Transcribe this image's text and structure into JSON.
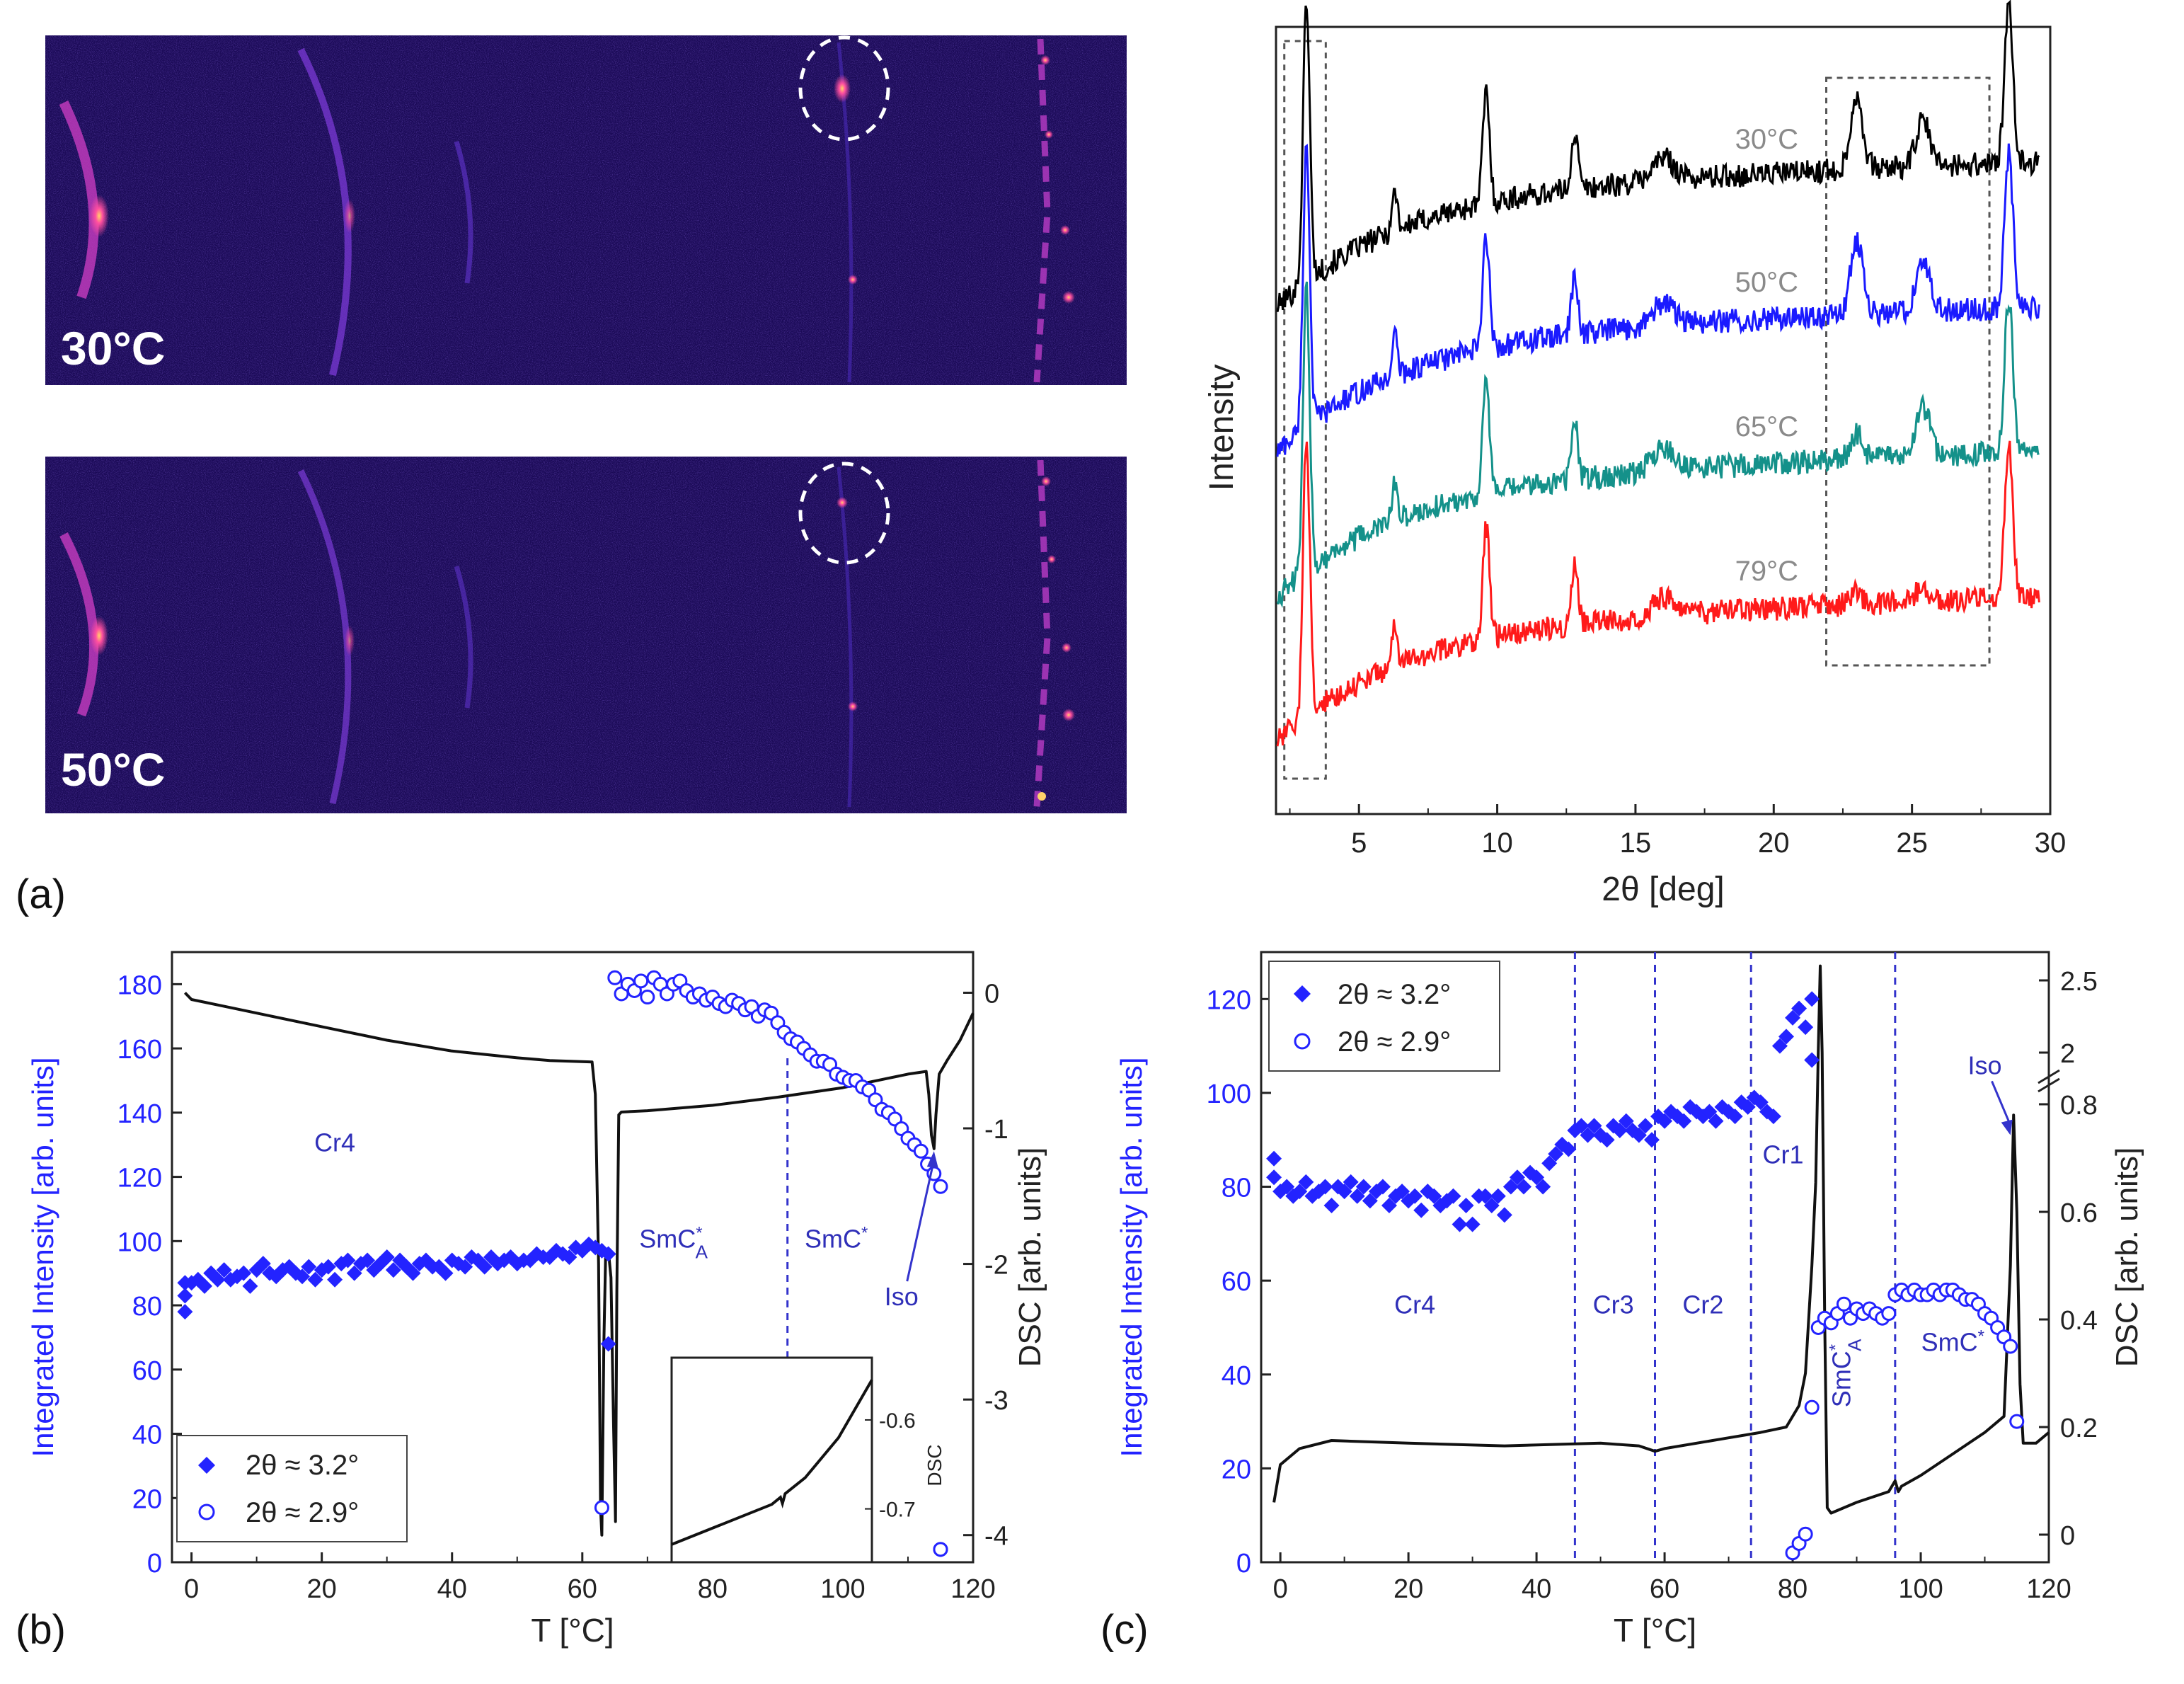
{
  "colors": {
    "series_30": "#000000",
    "series_50": "#1a1aff",
    "series_65": "#14918a",
    "series_79": "#ff1a1a",
    "blue_markers": "#2323ff",
    "phase_text": "#2f2fb8",
    "detector_bg": "#1b0a57",
    "temp_label": "#8a8a8a"
  },
  "panel_labels": {
    "a": "(a)",
    "b": "(b)",
    "c": "(c)"
  },
  "detector_images": [
    {
      "label": "30°C"
    },
    {
      "label": "50°C"
    }
  ],
  "chart_data": [
    {
      "id": "xrd",
      "type": "line",
      "xlabel": "2θ [deg]",
      "ylabel": "Intensity",
      "xlim": [
        2,
        30
      ],
      "xticks": [
        5,
        10,
        15,
        20,
        25,
        30
      ],
      "peaks": [
        {
          "x": 3.1,
          "h": 1.0,
          "w": 0.12
        },
        {
          "x": 6.3,
          "h": 0.14,
          "w": 0.1
        },
        {
          "x": 9.6,
          "h": 0.4,
          "w": 0.12
        },
        {
          "x": 12.8,
          "h": 0.2,
          "w": 0.12
        },
        {
          "x": 16.0,
          "h": 0.08,
          "w": 0.4
        },
        {
          "x": 23.0,
          "h": 0.26,
          "w": 0.22
        },
        {
          "x": 25.4,
          "h": 0.16,
          "w": 0.25
        },
        {
          "x": 28.5,
          "h": 0.55,
          "w": 0.15
        }
      ],
      "series": [
        {
          "name": "30°C",
          "offset": 3.0,
          "weights": [
            1.0,
            1.0,
            1.0,
            1.0,
            1.0,
            1.0,
            1.0,
            1.0
          ]
        },
        {
          "name": "50°C",
          "offset": 2.0,
          "weights": [
            1.0,
            1.0,
            1.0,
            1.0,
            1.0,
            1.0,
            1.1,
            1.0
          ]
        },
        {
          "name": "65°C",
          "offset": 1.0,
          "weights": [
            1.0,
            1.0,
            1.0,
            1.0,
            1.0,
            0.35,
            1.1,
            1.0
          ]
        },
        {
          "name": "79°C",
          "offset": 0.0,
          "weights": [
            1.0,
            1.0,
            1.0,
            1.0,
            0.8,
            0.15,
            0.3,
            1.0
          ]
        }
      ]
    },
    {
      "id": "b",
      "type": "scatter",
      "xlabel": "T [°C]",
      "ylabel": "Integrated Intensity [arb. units]",
      "y2label": "DSC [arb. units]",
      "xlim": [
        -3,
        120
      ],
      "ylim": [
        0,
        190
      ],
      "y2lim": [
        -4.2,
        0.3
      ],
      "xticks": [
        0,
        20,
        40,
        60,
        80,
        100,
        120
      ],
      "yticks": [
        0,
        20,
        40,
        60,
        80,
        100,
        120,
        140,
        160,
        180
      ],
      "y2ticks": [
        0,
        -1,
        -2,
        -3,
        -4
      ],
      "legend": [
        {
          "marker": "diamond",
          "label": "2θ ≈ 3.2°"
        },
        {
          "marker": "circle",
          "label": "2θ ≈ 2.9°"
        }
      ],
      "phases": [
        {
          "label": "Cr4",
          "x": 22,
          "y": 128
        },
        {
          "label": "SmC*A",
          "x": 74,
          "y": 98
        },
        {
          "label": "SmC*",
          "x": 99,
          "y": 98
        }
      ],
      "annotation": {
        "label": "Iso",
        "x": 109,
        "y": 80,
        "arrow_to": [
          114,
          128
        ]
      },
      "vlines": [
        91.5
      ],
      "diamonds_x": [
        -1,
        -1,
        -1,
        0,
        1,
        2,
        3,
        4,
        5,
        6,
        7,
        8,
        9,
        10,
        11,
        12,
        13,
        14,
        15,
        16,
        17,
        18,
        19,
        20,
        21,
        22,
        23,
        24,
        25,
        26,
        27,
        28,
        29,
        30,
        31,
        32,
        33,
        34,
        35,
        36,
        37,
        38,
        39,
        40,
        41,
        42,
        43,
        44,
        45,
        46,
        47,
        48,
        49,
        50,
        51,
        52,
        53,
        54,
        55,
        56,
        57,
        58,
        59,
        60,
        61,
        62,
        63,
        64
      ],
      "diamonds_y": [
        78,
        83,
        87,
        87,
        88,
        86,
        90,
        88,
        91,
        88,
        89,
        90,
        86,
        91,
        93,
        90,
        89,
        91,
        92,
        90,
        89,
        92,
        88,
        91,
        92,
        88,
        93,
        94,
        90,
        93,
        94,
        91,
        93,
        95,
        91,
        94,
        92,
        90,
        93,
        94,
        92,
        92,
        90,
        94,
        93,
        92,
        95,
        94,
        92,
        95,
        93,
        94,
        95,
        93,
        94,
        94,
        96,
        95,
        95,
        97,
        96,
        95,
        98,
        97,
        99,
        98,
        97,
        96
      ],
      "diamonds_extra": [
        [
          64,
          68
        ]
      ],
      "circles_x": [
        63,
        65,
        66,
        67,
        68,
        69,
        70,
        71,
        72,
        73,
        74,
        75,
        76,
        77,
        78,
        79,
        80,
        81,
        82,
        83,
        84,
        85,
        86,
        87,
        88,
        89,
        90,
        91,
        92,
        93,
        94,
        95,
        96,
        97,
        98,
        99,
        100,
        101,
        102,
        103,
        104,
        105,
        106,
        107,
        108,
        109,
        110,
        111,
        112,
        113,
        114,
        115
      ],
      "circles_y": [
        17,
        182,
        177,
        180,
        178,
        181,
        176,
        182,
        180,
        177,
        180,
        181,
        178,
        176,
        177,
        175,
        176,
        174,
        173,
        175,
        174,
        172,
        173,
        170,
        172,
        171,
        168,
        165,
        163,
        162,
        160,
        158,
        156,
        156,
        155,
        152,
        151,
        150,
        150,
        148,
        147,
        144,
        141,
        140,
        138,
        135,
        132,
        130,
        128,
        124,
        121,
        117
      ],
      "circles_extra": [
        [
          115,
          4
        ]
      ],
      "dsc": [
        [
          -1,
          0.0
        ],
        [
          0,
          -0.05
        ],
        [
          5,
          -0.1
        ],
        [
          10,
          -0.15
        ],
        [
          20,
          -0.25
        ],
        [
          30,
          -0.35
        ],
        [
          40,
          -0.43
        ],
        [
          50,
          -0.48
        ],
        [
          55,
          -0.5
        ],
        [
          61.5,
          -0.51
        ],
        [
          62,
          -0.75
        ],
        [
          62.5,
          -2.0
        ],
        [
          62.8,
          -3.8
        ],
        [
          63.0,
          -4.0
        ],
        [
          63.3,
          -2.6
        ],
        [
          63.6,
          -1.9
        ],
        [
          64,
          -1.9
        ],
        [
          64.4,
          -2.1
        ],
        [
          64.8,
          -3.2
        ],
        [
          65.1,
          -3.9
        ],
        [
          65.3,
          -2.2
        ],
        [
          65.6,
          -0.9
        ],
        [
          66,
          -0.88
        ],
        [
          70,
          -0.87
        ],
        [
          80,
          -0.83
        ],
        [
          90,
          -0.77
        ],
        [
          100,
          -0.7
        ],
        [
          110,
          -0.6
        ],
        [
          112.8,
          -0.58
        ],
        [
          113.2,
          -0.75
        ],
        [
          113.6,
          -1.05
        ],
        [
          114,
          -1.15
        ],
        [
          114.3,
          -0.9
        ],
        [
          114.8,
          -0.6
        ],
        [
          116,
          -0.5
        ],
        [
          118,
          -0.35
        ],
        [
          120,
          -0.15
        ]
      ],
      "inset": {
        "ylabel": "DSC",
        "yticks": [
          -0.6,
          -0.7
        ],
        "xlim": [
          75,
          105
        ],
        "ylim": [
          -0.76,
          -0.53
        ],
        "curve": [
          [
            75,
            -0.74
          ],
          [
            80,
            -0.725
          ],
          [
            85,
            -0.71
          ],
          [
            90,
            -0.695
          ],
          [
            91.3,
            -0.687
          ],
          [
            91.6,
            -0.694
          ],
          [
            92,
            -0.683
          ],
          [
            95,
            -0.665
          ],
          [
            100,
            -0.62
          ],
          [
            105,
            -0.555
          ]
        ]
      }
    },
    {
      "id": "c",
      "type": "scatter",
      "xlabel": "T [°C]",
      "ylabel": "Integrated Intensity [arb. units]",
      "y2label": "DSC [arb. units]",
      "xlim": [
        -3,
        120
      ],
      "ylim": [
        0,
        130
      ],
      "y2lim": [
        -0.02,
        2.7
      ],
      "xticks": [
        0,
        20,
        40,
        60,
        80,
        100,
        120
      ],
      "yticks": [
        0,
        20,
        40,
        60,
        80,
        100,
        120
      ],
      "y2ticks": [
        {
          "v": 0,
          "label": "0"
        },
        {
          "v": 0.2,
          "label": "0.2"
        },
        {
          "v": 0.4,
          "label": "0.4"
        },
        {
          "v": 0.6,
          "label": "0.6"
        },
        {
          "v": 0.8,
          "label": "0.8"
        },
        {
          "v": 2.0,
          "label": "2"
        },
        {
          "v": 2.5,
          "label": "2.5"
        }
      ],
      "legend": [
        {
          "marker": "diamond",
          "label": "2θ ≈ 3.2°"
        },
        {
          "marker": "circle",
          "label": "2θ ≈ 2.9°"
        }
      ],
      "phases": [
        {
          "label": "Cr4",
          "x": 21,
          "y": 53
        },
        {
          "label": "Cr3",
          "x": 52,
          "y": 53
        },
        {
          "label": "Cr2",
          "x": 66,
          "y": 53
        },
        {
          "label": "Cr1",
          "x": 78.5,
          "y": 85
        },
        {
          "label": "SmC*A",
          "x": 89,
          "y": 33,
          "rotate": true
        },
        {
          "label": "SmC*",
          "x": 105,
          "y": 45
        }
      ],
      "annotation": {
        "label": "Iso",
        "x": 110,
        "y": 104,
        "arrow_to": [
          114,
          91
        ]
      },
      "vlines": [
        46,
        58.5,
        73.5,
        96
      ],
      "diamonds_x": [
        -1,
        -1,
        0,
        1,
        2,
        3,
        4,
        5,
        6,
        7,
        8,
        9,
        10,
        11,
        12,
        13,
        14,
        15,
        16,
        17,
        18,
        19,
        20,
        21,
        22,
        23,
        24,
        25,
        26,
        27,
        28,
        29,
        30,
        31,
        32,
        33,
        34,
        35,
        36,
        37,
        38,
        39,
        40,
        41,
        42,
        43,
        44,
        45,
        46,
        47,
        48,
        49,
        50,
        51,
        52,
        53,
        54,
        55,
        56,
        57,
        58,
        59,
        60,
        61,
        62,
        63,
        64,
        65,
        66,
        67,
        68,
        69,
        70,
        71,
        72,
        73,
        74,
        75,
        76,
        77,
        78,
        79,
        80,
        81,
        82,
        83
      ],
      "diamonds_y": [
        86,
        82,
        79,
        80,
        78,
        79,
        81,
        78,
        79,
        80,
        76,
        80,
        79,
        81,
        78,
        80,
        77,
        79,
        80,
        76,
        78,
        79,
        77,
        78,
        75,
        79,
        78,
        76,
        77,
        78,
        72,
        76,
        72,
        78,
        78,
        76,
        78,
        74,
        80,
        82,
        80,
        83,
        82,
        80,
        85,
        87,
        89,
        88,
        92,
        93,
        91,
        93,
        91,
        90,
        93,
        92,
        94,
        92,
        91,
        93,
        90,
        95,
        94,
        96,
        95,
        94,
        97,
        96,
        95,
        96,
        94,
        97,
        96,
        95,
        98,
        97,
        99,
        98,
        96,
        95,
        110,
        112,
        116,
        118,
        114,
        120
      ],
      "diamonds_extra": [
        [
          83,
          107
        ]
      ],
      "circles_x": [
        80,
        81,
        82,
        83,
        84,
        85,
        86,
        87,
        88,
        89,
        90,
        91,
        92,
        93,
        94,
        95,
        96,
        97,
        98,
        99,
        100,
        101,
        102,
        103,
        104,
        105,
        106,
        107,
        108,
        109,
        110,
        111,
        112,
        113,
        114
      ],
      "circles_y": [
        2,
        4,
        6,
        33,
        50,
        52,
        51,
        53,
        55,
        52,
        54,
        53,
        54,
        53,
        52,
        53,
        57,
        58,
        57,
        58,
        57,
        57,
        58,
        57,
        58,
        58,
        57,
        56,
        56,
        55,
        53,
        52,
        50,
        48,
        46
      ],
      "circles_extra": [
        [
          115,
          30
        ]
      ],
      "dsc": [
        [
          -1,
          0.06
        ],
        [
          0,
          0.13
        ],
        [
          3,
          0.16
        ],
        [
          8,
          0.175
        ],
        [
          20,
          0.17
        ],
        [
          35,
          0.165
        ],
        [
          50,
          0.17
        ],
        [
          56,
          0.165
        ],
        [
          58.5,
          0.155
        ],
        [
          60,
          0.16
        ],
        [
          70,
          0.18
        ],
        [
          75,
          0.19
        ],
        [
          79,
          0.2
        ],
        [
          81,
          0.24
        ],
        [
          82,
          0.3
        ],
        [
          83,
          0.5
        ],
        [
          83.6,
          1.1
        ],
        [
          84,
          2.0
        ],
        [
          84.3,
          2.6
        ],
        [
          84.6,
          2.0
        ],
        [
          85,
          0.4
        ],
        [
          85.4,
          0.05
        ],
        [
          86,
          0.04
        ],
        [
          90,
          0.06
        ],
        [
          95,
          0.08
        ],
        [
          96,
          0.1
        ],
        [
          96.5,
          0.08
        ],
        [
          97,
          0.09
        ],
        [
          100,
          0.11
        ],
        [
          105,
          0.15
        ],
        [
          110,
          0.19
        ],
        [
          113,
          0.22
        ],
        [
          114,
          0.5
        ],
        [
          114.5,
          0.78
        ],
        [
          115,
          0.6
        ],
        [
          115.5,
          0.28
        ],
        [
          116,
          0.17
        ],
        [
          118,
          0.17
        ],
        [
          120,
          0.19
        ]
      ]
    }
  ]
}
